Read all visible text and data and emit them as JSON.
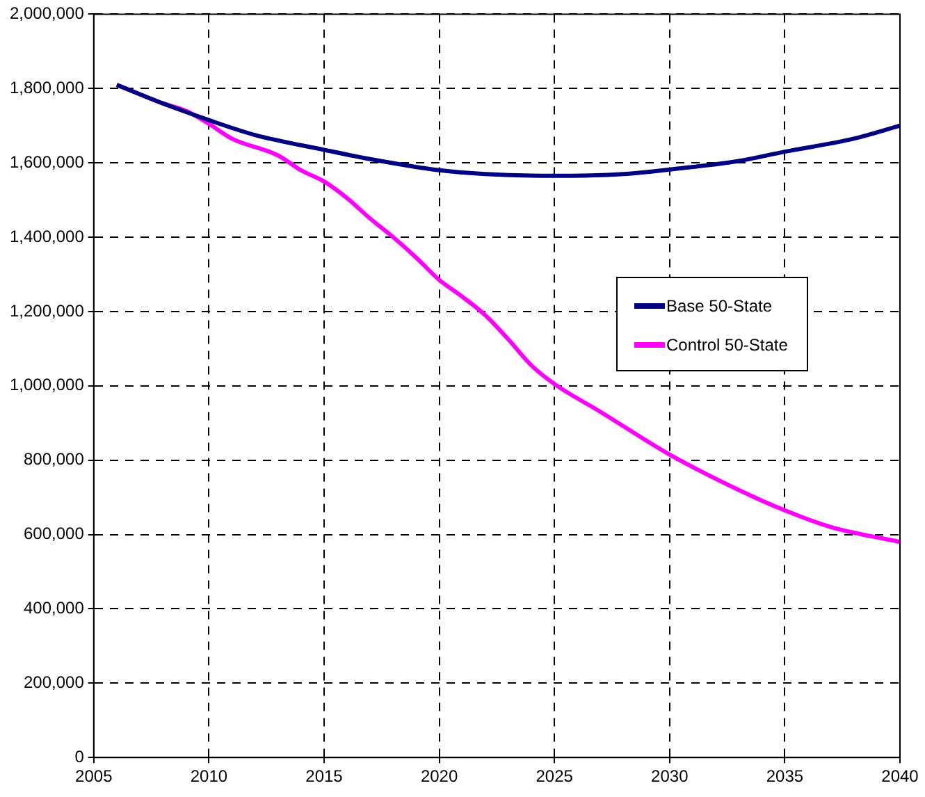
{
  "chart_data": {
    "type": "line",
    "series": [
      {
        "name": "Base 50-State",
        "color": "#000080",
        "x": [
          2006,
          2008,
          2010,
          2012,
          2015,
          2017,
          2020,
          2022,
          2025,
          2028,
          2030,
          2033,
          2035,
          2038,
          2040
        ],
        "values": [
          1810000,
          1760000,
          1715000,
          1675000,
          1635000,
          1610000,
          1580000,
          1570000,
          1565000,
          1570000,
          1582000,
          1605000,
          1630000,
          1665000,
          1700000
        ]
      },
      {
        "name": "Control 50-State",
        "color": "#ff00ff",
        "x": [
          2006,
          2008,
          2009,
          2010,
          2011,
          2013,
          2014,
          2015,
          2016,
          2017,
          2018,
          2019,
          2020,
          2021,
          2022,
          2023,
          2024,
          2025,
          2027,
          2030,
          2033,
          2035,
          2037,
          2040
        ],
        "values": [
          1810000,
          1760000,
          1740000,
          1705000,
          1665000,
          1620000,
          1580000,
          1550000,
          1505000,
          1450000,
          1400000,
          1345000,
          1285000,
          1240000,
          1190000,
          1125000,
          1055000,
          1005000,
          930000,
          815000,
          720000,
          665000,
          620000,
          580000
        ]
      }
    ],
    "xlim": [
      2005,
      2040
    ],
    "xticks": [
      2005,
      2010,
      2015,
      2020,
      2025,
      2030,
      2035,
      2040
    ],
    "ylim": [
      0,
      2000000
    ],
    "yticks": [
      {
        "value": 0,
        "label": "0"
      },
      {
        "value": 200000,
        "label": "200,000"
      },
      {
        "value": 400000,
        "label": "400,000"
      },
      {
        "value": 600000,
        "label": "600,000"
      },
      {
        "value": 800000,
        "label": "800,000"
      },
      {
        "value": 1000000,
        "label": "1,000,000"
      },
      {
        "value": 1200000,
        "label": "1,200,000"
      },
      {
        "value": 1400000,
        "label": "1,400,000"
      },
      {
        "value": 1600000,
        "label": "1,600,000"
      },
      {
        "value": 1800000,
        "label": "1,800,000"
      },
      {
        "value": 2000000,
        "label": "2,000,000"
      }
    ],
    "grid": true,
    "legend": "right",
    "marker": "none",
    "line_style": "solid"
  }
}
